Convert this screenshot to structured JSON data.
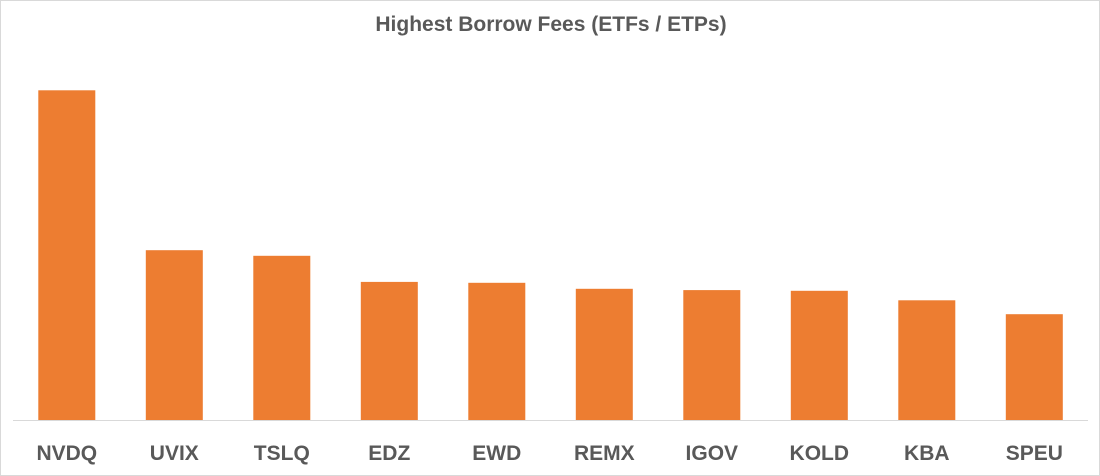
{
  "chart_data": {
    "type": "bar",
    "title": "Highest Borrow Fees (ETFs / ETPs)",
    "categories": [
      "NVDQ",
      "UVIX",
      "TSLQ",
      "EDZ",
      "EWD",
      "REMX",
      "IGOV",
      "KOLD",
      "KBA",
      "SPEU"
    ],
    "values": [
      100,
      51.5,
      49.8,
      41.9,
      41.6,
      39.8,
      39.4,
      39.2,
      36.3,
      32.1
    ],
    "xlabel": "",
    "ylabel": "",
    "ylim": [
      0,
      101
    ],
    "grid": false,
    "legend": "none",
    "bar_color": "#ED7D31",
    "axis_color": "#D9D9D9"
  }
}
